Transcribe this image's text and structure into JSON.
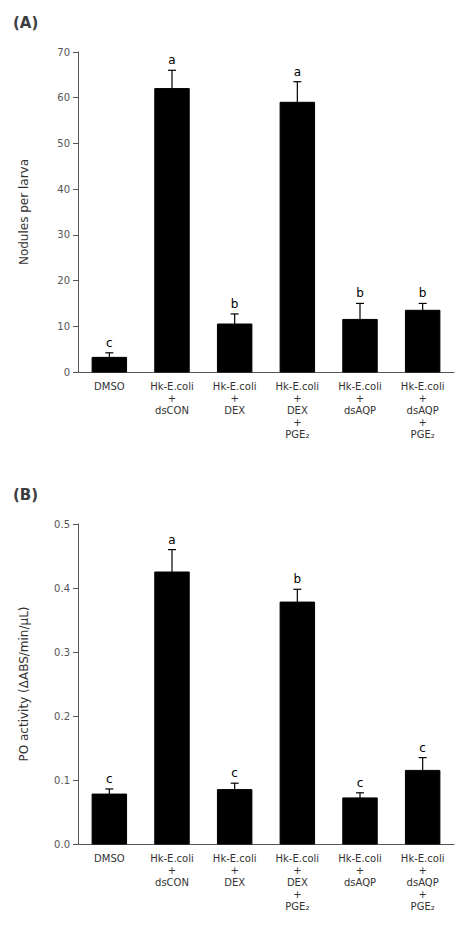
{
  "chart_data": [
    {
      "type": "bar",
      "title": "(A)",
      "ylabel": "Nodules per larva",
      "categories": [
        "DMSO",
        "Hk-E.coli\n+\ndsCON",
        "Hk-E.coli\n+\nDEX",
        "Hk-E.coli\n+\nDEX\n+\nPGE₂",
        "Hk-E.coli\n+\ndsAQP",
        "Hk-E.coli\n+\ndsAQP\n+\nPGE₂"
      ],
      "values": [
        3.2,
        62.0,
        10.5,
        59.0,
        11.5,
        13.5
      ],
      "errors": [
        1.0,
        4.0,
        2.2,
        4.5,
        3.5,
        1.5
      ],
      "annotations": [
        "c",
        "a",
        "b",
        "a",
        "b",
        "b"
      ],
      "color": "#000000",
      "ylim": [
        0,
        70
      ],
      "yticks": [
        0,
        10,
        20,
        30,
        40,
        50,
        60,
        70
      ],
      "grid": false
    },
    {
      "type": "bar",
      "title": "(B)",
      "ylabel": "PO activity (ΔABS/min/μL)",
      "categories": [
        "DMSO",
        "Hk-E.coli\n+\ndsCON",
        "Hk-E.coli\n+\nDEX",
        "Hk-E.coli\n+\nDEX\n+\nPGE₂",
        "Hk-E.coli\n+\ndsAQP",
        "Hk-E.coli\n+\ndsAQP\n+\nPGE₂"
      ],
      "values": [
        0.078,
        0.425,
        0.085,
        0.378,
        0.072,
        0.115
      ],
      "errors": [
        0.008,
        0.035,
        0.01,
        0.02,
        0.008,
        0.02
      ],
      "annotations": [
        "c",
        "a",
        "c",
        "b",
        "c",
        "c"
      ],
      "color": "#000000",
      "ylim": [
        0,
        0.5
      ],
      "yticks": [
        {
          "value": 0.0,
          "label": "0.0"
        },
        0.1,
        0.2,
        0.3,
        0.4,
        0.5
      ],
      "grid": false
    }
  ]
}
